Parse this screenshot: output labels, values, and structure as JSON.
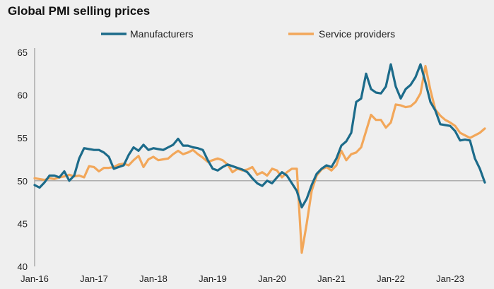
{
  "chart_data": {
    "type": "line",
    "title": "Global PMI selling prices",
    "xlabel": "",
    "ylabel": "",
    "ylim": [
      40,
      65
    ],
    "yticks": [
      40,
      45,
      50,
      55,
      60,
      65
    ],
    "xticks": [
      {
        "label": "Jan-16",
        "index": 0
      },
      {
        "label": "Jan-17",
        "index": 12
      },
      {
        "label": "Jan-18",
        "index": 24
      },
      {
        "label": "Jan-19",
        "index": 36
      },
      {
        "label": "Jan-20",
        "index": 48
      },
      {
        "label": "Jan-21",
        "index": 60
      },
      {
        "label": "Jan-22",
        "index": 72
      },
      {
        "label": "Jan-23",
        "index": 84
      }
    ],
    "x_start": "2016-01",
    "x_end": "2023-04",
    "reference_line": 50,
    "grid": false,
    "legend": "top-center",
    "series": [
      {
        "name": "Manufacturers",
        "color": "#1c6b8a",
        "values": [
          49.5,
          49.2,
          49.8,
          50.6,
          50.6,
          50.4,
          51.1,
          50.0,
          50.6,
          52.6,
          53.8,
          53.7,
          53.6,
          53.6,
          53.3,
          52.8,
          51.4,
          51.6,
          51.8,
          53.0,
          53.9,
          53.5,
          54.2,
          53.6,
          53.8,
          53.7,
          53.6,
          53.9,
          54.2,
          54.9,
          54.1,
          54.1,
          53.9,
          53.8,
          53.6,
          52.4,
          51.4,
          51.2,
          51.6,
          51.9,
          51.7,
          51.5,
          51.3,
          51.0,
          50.3,
          49.7,
          49.4,
          50.0,
          49.7,
          50.4,
          51.0,
          50.6,
          49.7,
          48.8,
          46.9,
          47.9,
          49.5,
          50.8,
          51.4,
          51.8,
          51.6,
          52.6,
          54.1,
          54.6,
          55.6,
          59.2,
          59.6,
          62.5,
          60.7,
          60.3,
          60.2,
          61.0,
          63.6,
          61.0,
          59.6,
          60.7,
          61.2,
          62.1,
          63.6,
          61.5,
          59.2,
          58.2,
          56.6,
          56.5,
          56.4,
          55.8,
          54.7,
          54.8,
          54.7,
          52.6,
          51.4,
          49.8
        ]
      },
      {
        "name": "Service providers",
        "color": "#f2a75a",
        "values": [
          50.3,
          50.2,
          50.1,
          50.3,
          50.2,
          50.4,
          50.5,
          50.7,
          50.5,
          50.6,
          50.4,
          51.7,
          51.6,
          51.1,
          51.5,
          51.5,
          51.6,
          51.9,
          52.0,
          51.8,
          52.4,
          52.9,
          51.6,
          52.5,
          52.8,
          52.4,
          52.5,
          52.6,
          53.1,
          53.5,
          53.1,
          53.3,
          53.6,
          53.1,
          52.7,
          52.2,
          52.4,
          52.6,
          52.4,
          51.9,
          51.0,
          51.4,
          51.2,
          51.3,
          51.6,
          50.7,
          51.0,
          50.6,
          51.4,
          51.2,
          50.4,
          51.0,
          51.4,
          51.4,
          41.6,
          45.0,
          48.8,
          50.6,
          51.3,
          51.6,
          51.2,
          51.8,
          53.5,
          52.4,
          53.1,
          53.3,
          53.9,
          55.8,
          57.7,
          57.1,
          57.1,
          56.2,
          56.8,
          58.9,
          58.8,
          58.6,
          58.7,
          59.2,
          60.2,
          63.4,
          60.6,
          58.3,
          57.6,
          57.1,
          56.8,
          56.4,
          55.6,
          55.3,
          55.0,
          55.3,
          55.6,
          56.1
        ]
      }
    ]
  }
}
